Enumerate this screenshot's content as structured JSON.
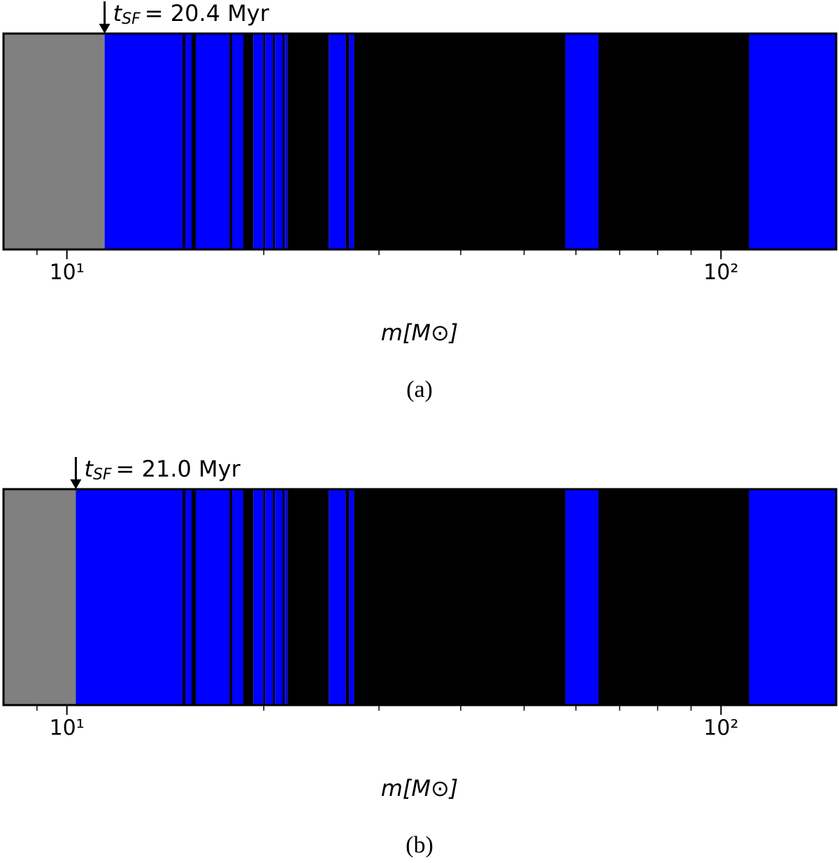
{
  "chart_data": [
    {
      "type": "bands",
      "caption": "(a)",
      "xlabel": "m[M⊙]",
      "log_x": true,
      "xlim": [
        8,
        150
      ],
      "xticks": [
        {
          "value": 10,
          "label": "10¹"
        },
        {
          "value": 100,
          "label": "10²"
        }
      ],
      "xminor": [
        9,
        20,
        30,
        40,
        50,
        60,
        70,
        80,
        90
      ],
      "annotation": {
        "symbol": "t",
        "subscript": "SF",
        "text": "= 20.4 Myr",
        "x": 11.42
      },
      "bins": [
        8,
        11.42,
        15.02,
        15.17,
        15.51,
        15.74,
        17.72,
        17.89,
        18.61,
        19.27,
        19.95,
        20.1,
        20.64,
        20.8,
        21.36,
        21.53,
        21.74,
        25.14,
        26.68,
        27.01,
        27.48,
        57.85,
        64.96,
        110.4,
        150
      ],
      "colors": [
        "#808080",
        "#0000ff",
        "#000000",
        "#0000ff",
        "#000000",
        "#0000ff",
        "#000000",
        "#0000ff",
        "#000000",
        "#0000ff",
        "#000000",
        "#0000ff",
        "#000000",
        "#0000ff",
        "#000000",
        "#0000ff",
        "#000000",
        "#0000ff",
        "#000000",
        "#0000ff",
        "#000000",
        "#0000ff",
        "#000000",
        "#0000ff"
      ]
    },
    {
      "type": "bands",
      "caption": "(b)",
      "xlabel": "m[M⊙]",
      "log_x": true,
      "xlim": [
        8,
        150
      ],
      "xticks": [
        {
          "value": 10,
          "label": "10¹"
        },
        {
          "value": 100,
          "label": "10²"
        }
      ],
      "xminor": [
        9,
        20,
        30,
        40,
        50,
        60,
        70,
        80,
        90
      ],
      "annotation": {
        "symbol": "t",
        "subscript": "SF",
        "text": "= 21.0 Myr",
        "x": 10.32
      },
      "bins": [
        8,
        10.32,
        15.02,
        15.17,
        15.51,
        15.74,
        17.72,
        17.89,
        18.61,
        19.27,
        19.95,
        20.1,
        20.64,
        20.8,
        21.36,
        21.53,
        21.74,
        25.14,
        26.68,
        27.01,
        27.48,
        57.85,
        64.96,
        110.4,
        150
      ],
      "colors": [
        "#808080",
        "#0000ff",
        "#000000",
        "#0000ff",
        "#000000",
        "#0000ff",
        "#000000",
        "#0000ff",
        "#000000",
        "#0000ff",
        "#000000",
        "#0000ff",
        "#000000",
        "#0000ff",
        "#000000",
        "#0000ff",
        "#000000",
        "#0000ff",
        "#000000",
        "#0000ff",
        "#000000",
        "#0000ff",
        "#000000",
        "#0000ff"
      ]
    }
  ]
}
